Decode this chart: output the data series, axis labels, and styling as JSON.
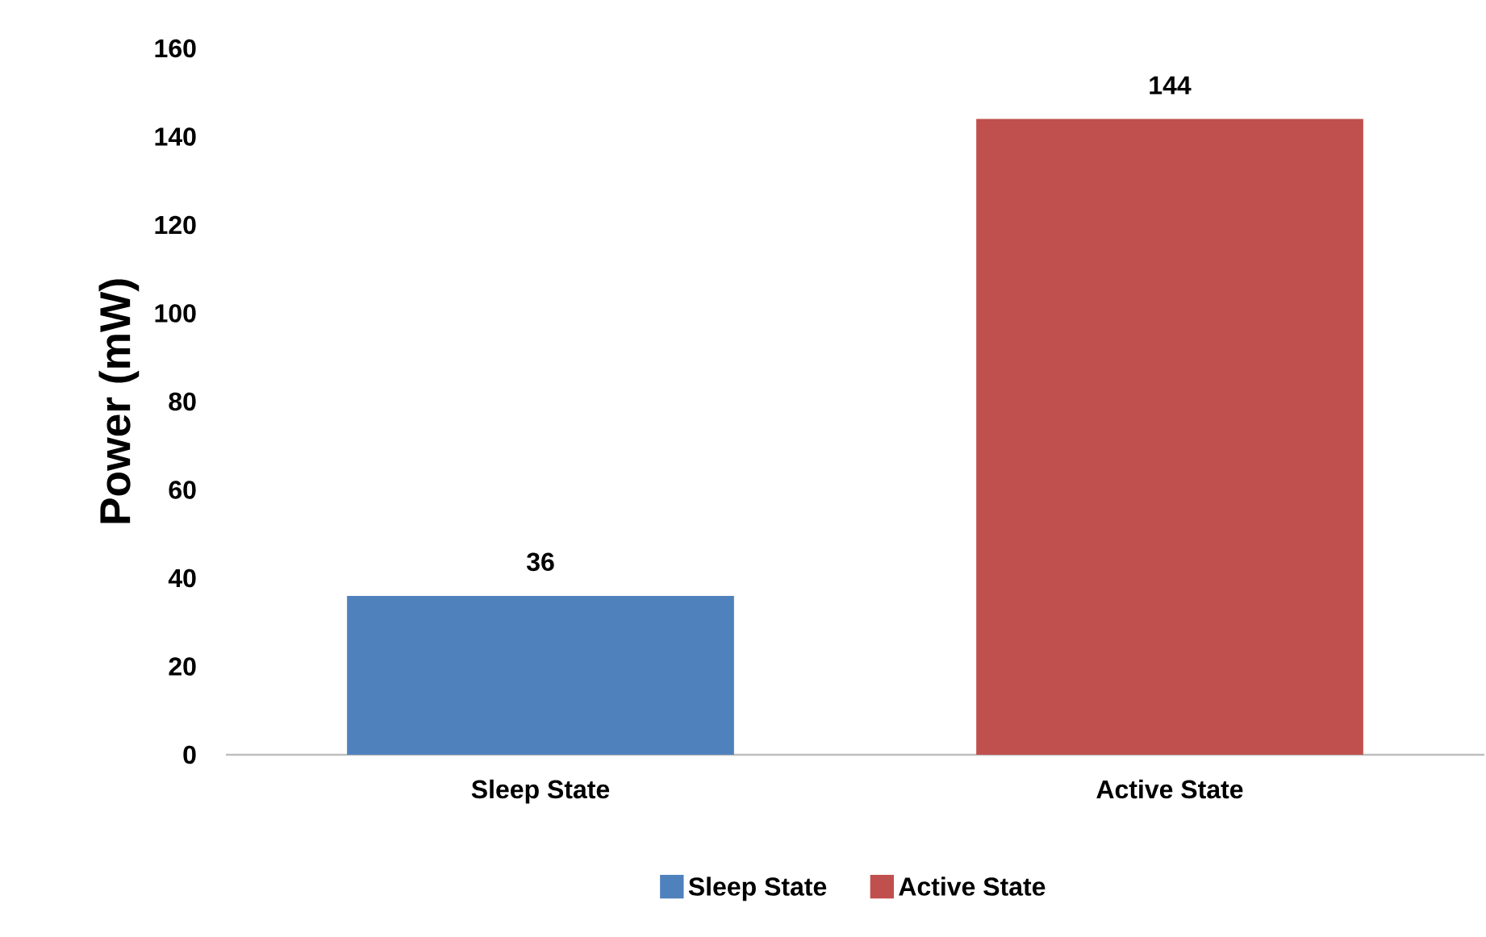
{
  "chart_data": {
    "type": "bar",
    "ylabel": "Power (mW)",
    "categories": [
      "Sleep State",
      "Active State"
    ],
    "series": [
      {
        "name": "Sleep State",
        "color": "#4f81bd",
        "values": [
          36,
          null
        ]
      },
      {
        "name": "Active State",
        "color": "#c0504d",
        "values": [
          null,
          144
        ]
      }
    ],
    "ylim": [
      0,
      160
    ],
    "yticks": [
      0,
      20,
      40,
      60,
      80,
      100,
      120,
      140,
      160
    ],
    "data_labels": true,
    "legend": "bottom"
  }
}
